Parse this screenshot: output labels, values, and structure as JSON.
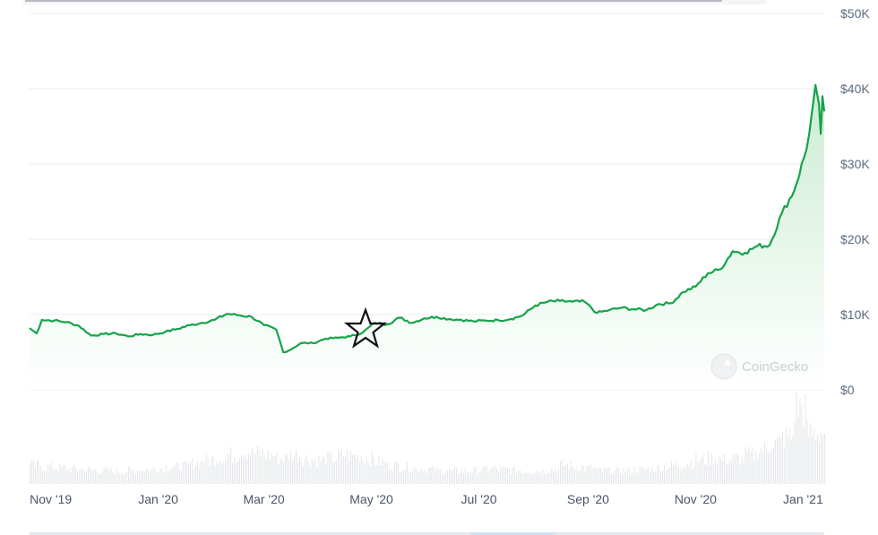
{
  "watermark": "CoinGecko",
  "colors": {
    "line": "#16a34a",
    "area_top": "#c9ebd1",
    "grid": "#eceef1",
    "volume": "#e3e6ea",
    "axis_text": "#5b6b82"
  },
  "chart_data": {
    "type": "area",
    "x_type": "date",
    "xlim": [
      "2019-10-20",
      "2021-01-13"
    ],
    "ylim": [
      0,
      50000
    ],
    "grid": true,
    "legend": "none",
    "y_ticks": [
      "$0",
      "$10K",
      "$20K",
      "$30K",
      "$40K",
      "$50K"
    ],
    "y_tick_values": [
      0,
      10000,
      20000,
      30000,
      40000,
      50000
    ],
    "x_ticks": [
      "Nov '19",
      "Jan '20",
      "Mar '20",
      "May '20",
      "Jul '20",
      "Sep '20",
      "Nov '20",
      "Jan '21"
    ],
    "x_tick_dates": [
      "2019-11-01",
      "2020-01-01",
      "2020-03-01",
      "2020-05-01",
      "2020-07-01",
      "2020-09-01",
      "2020-11-01",
      "2021-01-01"
    ],
    "price": [
      [
        "2019-10-20",
        8200
      ],
      [
        "2019-10-24",
        7500
      ],
      [
        "2019-10-27",
        9300
      ],
      [
        "2019-11-03",
        9200
      ],
      [
        "2019-11-10",
        9000
      ],
      [
        "2019-11-17",
        8500
      ],
      [
        "2019-11-24",
        7200
      ],
      [
        "2019-12-01",
        7400
      ],
      [
        "2019-12-08",
        7500
      ],
      [
        "2019-12-15",
        7100
      ],
      [
        "2019-12-22",
        7400
      ],
      [
        "2019-12-29",
        7300
      ],
      [
        "2020-01-05",
        7700
      ],
      [
        "2020-01-12",
        8100
      ],
      [
        "2020-01-19",
        8600
      ],
      [
        "2020-01-26",
        8900
      ],
      [
        "2020-02-02",
        9300
      ],
      [
        "2020-02-09",
        10100
      ],
      [
        "2020-02-16",
        9900
      ],
      [
        "2020-02-23",
        9700
      ],
      [
        "2020-03-01",
        8600
      ],
      [
        "2020-03-08",
        8000
      ],
      [
        "2020-03-12",
        5000
      ],
      [
        "2020-03-15",
        5200
      ],
      [
        "2020-03-22",
        6200
      ],
      [
        "2020-03-29",
        6200
      ],
      [
        "2020-04-05",
        6800
      ],
      [
        "2020-04-12",
        6900
      ],
      [
        "2020-04-19",
        7100
      ],
      [
        "2020-04-26",
        7600
      ],
      [
        "2020-05-03",
        8900
      ],
      [
        "2020-05-10",
        8700
      ],
      [
        "2020-05-17",
        9600
      ],
      [
        "2020-05-24",
        8900
      ],
      [
        "2020-05-31",
        9500
      ],
      [
        "2020-06-07",
        9700
      ],
      [
        "2020-06-14",
        9400
      ],
      [
        "2020-06-21",
        9300
      ],
      [
        "2020-06-28",
        9100
      ],
      [
        "2020-07-05",
        9200
      ],
      [
        "2020-07-12",
        9250
      ],
      [
        "2020-07-19",
        9400
      ],
      [
        "2020-07-26",
        9900
      ],
      [
        "2020-08-02",
        11200
      ],
      [
        "2020-08-09",
        11700
      ],
      [
        "2020-08-16",
        11800
      ],
      [
        "2020-08-23",
        11700
      ],
      [
        "2020-08-30",
        11700
      ],
      [
        "2020-09-06",
        10200
      ],
      [
        "2020-09-13",
        10600
      ],
      [
        "2020-09-20",
        10900
      ],
      [
        "2020-09-27",
        10700
      ],
      [
        "2020-10-04",
        10600
      ],
      [
        "2020-10-11",
        11400
      ],
      [
        "2020-10-18",
        11500
      ],
      [
        "2020-10-25",
        13000
      ],
      [
        "2020-11-01",
        13700
      ],
      [
        "2020-11-08",
        15500
      ],
      [
        "2020-11-15",
        16000
      ],
      [
        "2020-11-22",
        18400
      ],
      [
        "2020-11-29",
        18200
      ],
      [
        "2020-12-06",
        19100
      ],
      [
        "2020-12-13",
        19200
      ],
      [
        "2020-12-20",
        23500
      ],
      [
        "2020-12-27",
        26500
      ],
      [
        "2021-01-03",
        32000
      ],
      [
        "2021-01-06",
        36800
      ],
      [
        "2021-01-08",
        40500
      ],
      [
        "2021-01-10",
        38000
      ],
      [
        "2021-01-11",
        34000
      ],
      [
        "2021-01-12",
        39000
      ],
      [
        "2021-01-13",
        37000
      ]
    ],
    "volume_relative": [
      22,
      20,
      19,
      18,
      17,
      16,
      16,
      15,
      16,
      17,
      18,
      20,
      21,
      24,
      28,
      30,
      34,
      38,
      36,
      34,
      30,
      34,
      30,
      28,
      30,
      34,
      33,
      30,
      26,
      22,
      20,
      18,
      17,
      16,
      15,
      15,
      16,
      18,
      17,
      16,
      15,
      16,
      17,
      22,
      20,
      18,
      16,
      15,
      16,
      17,
      18,
      20,
      22,
      25,
      28,
      30,
      28,
      30,
      34,
      40,
      48,
      55,
      90,
      60
    ]
  }
}
